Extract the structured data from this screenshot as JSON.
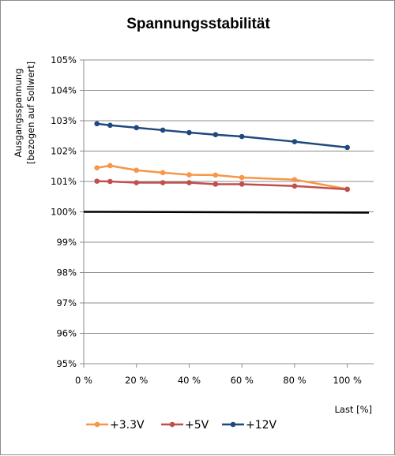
{
  "chart_data": {
    "type": "line",
    "title": "Spannungsstabilität",
    "ylabel_line1": "Ausgangsspannung",
    "ylabel_line2": "[bezogen auf Sollwert]",
    "xlabel": "Last [%]",
    "xlim": [
      0,
      110
    ],
    "ylim": [
      95,
      105
    ],
    "x_ticks": [
      0,
      20,
      40,
      60,
      80,
      100
    ],
    "x_tick_labels": [
      "0 %",
      "20 %",
      "40 %",
      "60 %",
      "80 %",
      "100 %"
    ],
    "y_ticks": [
      95,
      96,
      97,
      98,
      99,
      100,
      101,
      102,
      103,
      104,
      105
    ],
    "y_tick_labels": [
      "95%",
      "96%",
      "97%",
      "98%",
      "99%",
      "100%",
      "101%",
      "102%",
      "103%",
      "104%",
      "105%"
    ],
    "grid": "horizontal",
    "legend_position": "bottom",
    "reference_line": {
      "y": 100,
      "color": "#000000"
    },
    "series": [
      {
        "name": "+3.3V",
        "color": "#f79646",
        "x": [
          5,
          10,
          20,
          30,
          40,
          50,
          60,
          80,
          100
        ],
        "y": [
          101.45,
          101.52,
          101.37,
          101.29,
          101.22,
          101.21,
          101.13,
          101.06,
          100.75
        ]
      },
      {
        "name": "+5V",
        "color": "#c0504d",
        "x": [
          5,
          10,
          20,
          30,
          40,
          50,
          60,
          80,
          100
        ],
        "y": [
          101.01,
          101.0,
          100.96,
          100.96,
          100.96,
          100.91,
          100.91,
          100.85,
          100.74
        ]
      },
      {
        "name": "+12V",
        "color": "#1f497d",
        "x": [
          5,
          10,
          20,
          30,
          40,
          50,
          60,
          80,
          100
        ],
        "y": [
          102.9,
          102.85,
          102.77,
          102.69,
          102.61,
          102.54,
          102.48,
          102.31,
          102.12
        ]
      }
    ]
  }
}
